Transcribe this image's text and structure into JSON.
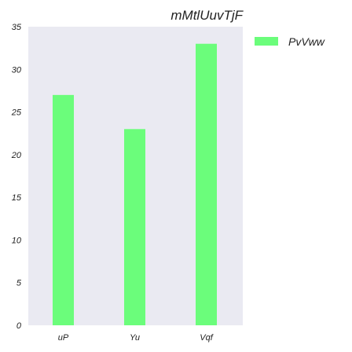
{
  "chart_data": {
    "type": "bar",
    "title": "mMtlUuvTjF",
    "xlabel": "",
    "ylabel": "",
    "categories": [
      "uP",
      "Yu",
      "Vqf"
    ],
    "series": [
      {
        "name": "PvVww",
        "values": [
          27,
          23,
          33
        ]
      }
    ],
    "ylim": [
      0,
      35
    ],
    "yticks": [
      0,
      5,
      10,
      15,
      20,
      25,
      30,
      35
    ],
    "grid": false,
    "legend_position": "outside-top-right",
    "colors": {
      "plot_background": "#eaeaf2",
      "bar": "#6bfd7b"
    }
  }
}
